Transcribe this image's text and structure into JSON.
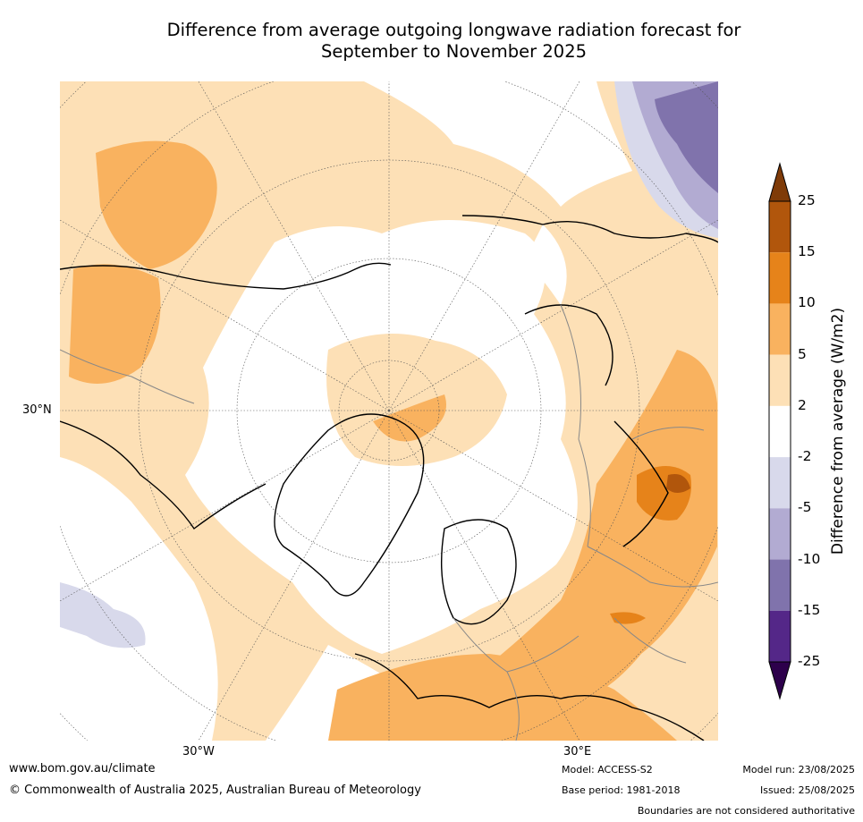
{
  "title_line1": "Difference from average outgoing longwave radiation forecast for",
  "title_line2": "September to November 2025",
  "map": {
    "projection": "north-polar-stereographic",
    "lat_label": "30°N",
    "lon_labels": [
      "30°W",
      "30°E"
    ],
    "colors": {
      "plus_2_5": "#fde0b6",
      "plus_5_10": "#f9b25f",
      "plus_10_15": "#e6831a",
      "plus_15_25": "#b1560c",
      "minus_2_5": "#d8d9eb",
      "minus_5_10": "#b2abd2",
      "minus_10_15": "#8073ac",
      "neutral": "#ffffff"
    }
  },
  "colorbar": {
    "title": "Difference from average (W/m2)",
    "ticks": [
      "25",
      "15",
      "10",
      "5",
      "2",
      "-2",
      "-5",
      "-10",
      "-15",
      "-25"
    ],
    "bands": [
      "#b1560c",
      "#e6831a",
      "#f9b25f",
      "#fde0b6",
      "#ffffff",
      "#d8d9eb",
      "#b2abd2",
      "#8073ac",
      "#542788"
    ],
    "over_color": "#7f3b08",
    "under_color": "#2d004b"
  },
  "footer": {
    "url": "www.bom.gov.au/climate",
    "copyright": "© Commonwealth of Australia 2025, Australian Bureau of Meteorology",
    "model": "Model: ACCESS-S2",
    "base_period": "Base period: 1981-2018",
    "model_run": "Model run: 23/08/2025",
    "issued": "Issued: 25/08/2025",
    "disclaimer": "Boundaries are not considered authoritative"
  }
}
